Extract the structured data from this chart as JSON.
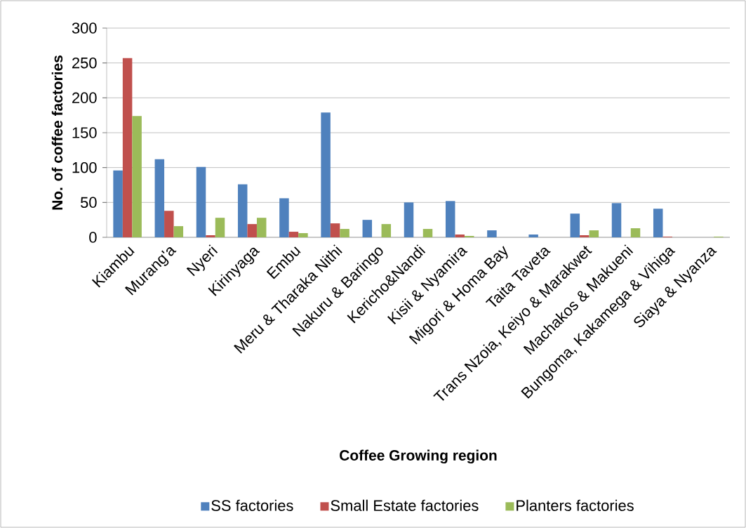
{
  "chart_data": {
    "type": "bar",
    "xlabel": "Coffee Growing region",
    "ylabel": "No. of coffee factories",
    "categories": [
      "Kiambu",
      "Murang'a",
      "Nyeri",
      "Kirinyaga",
      "Embu",
      "Meru & Tharaka Nithi",
      "Nakuru & Baringo",
      "Kericho&Nandi",
      "Kisii & Nyamira",
      "Migori & Homa Bay",
      "Taita Taveta",
      "Trans Nzoia, Keiyo & Marakwet",
      "Machakos & Makueni",
      "Bungoma, Kakamega & Vihiga",
      "Siaya & Nyanza"
    ],
    "series": [
      {
        "name": "SS factories",
        "color": "#4f81bd",
        "values": [
          96,
          112,
          101,
          76,
          56,
          179,
          25,
          50,
          52,
          10,
          4,
          34,
          49,
          41,
          0
        ]
      },
      {
        "name": "Small Estate factories",
        "color": "#c0504d",
        "values": [
          257,
          38,
          3,
          19,
          8,
          20,
          0,
          0,
          4,
          0,
          0,
          3,
          0,
          1,
          0
        ]
      },
      {
        "name": "Planters factories",
        "color": "#9bbb59",
        "values": [
          174,
          16,
          28,
          28,
          6,
          12,
          19,
          12,
          2,
          0,
          0,
          10,
          13,
          0,
          1
        ]
      }
    ],
    "ylim": [
      0,
      300
    ],
    "yticks": [
      0,
      50,
      100,
      150,
      200,
      250,
      300
    ],
    "grid": "y",
    "legend": "bottom"
  }
}
